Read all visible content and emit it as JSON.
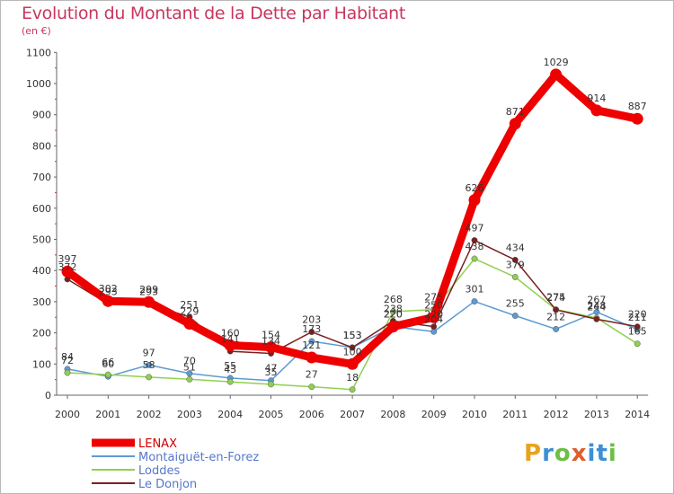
{
  "title": "Evolution du Montant de la Dette par Habitant",
  "subtitle": "(en €)",
  "logo_text": "Proxiti",
  "chart_data": {
    "type": "line",
    "title": "Evolution du Montant de la Dette par Habitant",
    "ylabel": "(en €)",
    "xlabel": "",
    "ylim": [
      0,
      1100
    ],
    "yticks": [
      0,
      100,
      200,
      300,
      400,
      500,
      600,
      700,
      800,
      900,
      1000,
      1100
    ],
    "x": [
      "2000",
      "2001",
      "2002",
      "2003",
      "2004",
      "2005",
      "2006",
      "2007",
      "2008",
      "2009",
      "2010",
      "2011",
      "2012",
      "2013",
      "2014"
    ],
    "grid": false,
    "legend_position": "bottom-left",
    "series": [
      {
        "name": "LENAX",
        "color": "#ee0000",
        "values": [
          397,
          302,
          299,
          229,
          160,
          154,
          121,
          100,
          220,
          250,
          626,
          871,
          1029,
          914,
          887
        ]
      },
      {
        "name": "Montaiguët-en-Forez",
        "color": "#5b9bd5",
        "values": [
          84,
          60,
          97,
          70,
          55,
          47,
          173,
          153,
          220,
          204,
          301,
          255,
          212,
          267,
          211
        ]
      },
      {
        "name": "Loddes",
        "color": "#90d050",
        "values": [
          72,
          66,
          58,
          51,
          43,
          35,
          27,
          18,
          268,
          275,
          438,
          379,
          275,
          248,
          165
        ]
      },
      {
        "name": "Le Donjon",
        "color": "#7b1f1f",
        "values": [
          372,
          293,
          293,
          251,
          141,
          134,
          203,
          153,
          238,
          220,
          497,
          434,
          274,
          244,
          220
        ]
      }
    ]
  }
}
